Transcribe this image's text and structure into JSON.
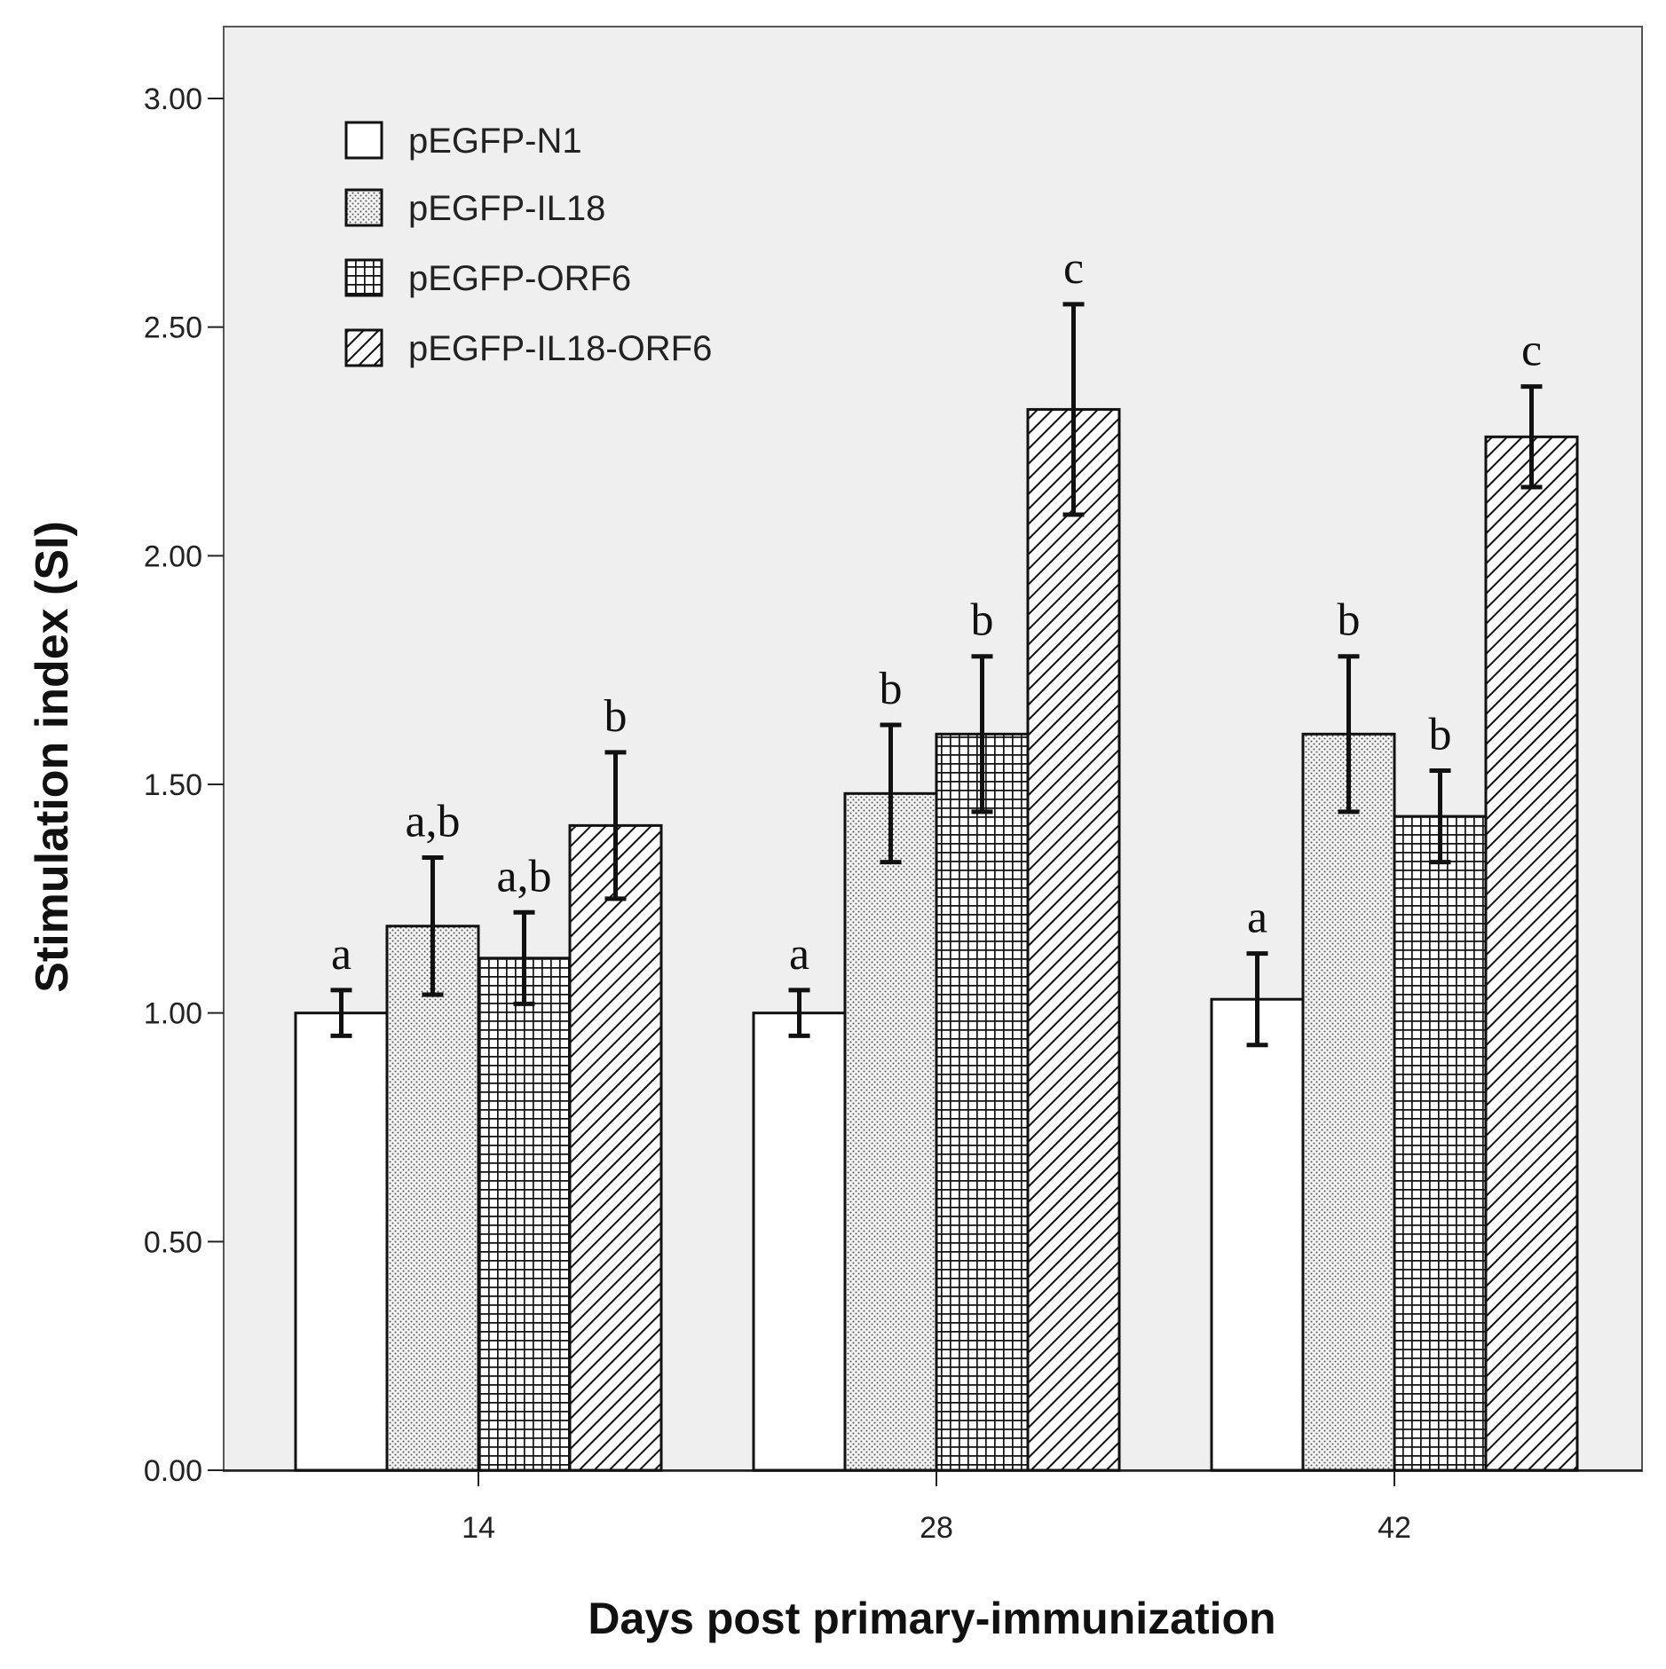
{
  "chart_data": {
    "type": "bar",
    "title": "",
    "xlabel": "Days post primary-immunization",
    "ylabel": "Stimulation index (SI)",
    "ylim": [
      0,
      3.0
    ],
    "yticks": [
      "0.00",
      "0.50",
      "1.00",
      "1.50",
      "2.00",
      "2.50",
      "3.00"
    ],
    "categories": [
      "14",
      "28",
      "42"
    ],
    "legend_position": "top-left",
    "series": [
      {
        "name": "pEGFP-N1",
        "pattern": "plain",
        "values": [
          1.0,
          1.0,
          1.03
        ],
        "errors": [
          0.05,
          0.05,
          0.1
        ],
        "labels": [
          "a",
          "a",
          "a"
        ]
      },
      {
        "name": "pEGFP-IL18",
        "pattern": "dots",
        "values": [
          1.19,
          1.48,
          1.61
        ],
        "errors": [
          0.15,
          0.15,
          0.17
        ],
        "labels": [
          "a,b",
          "b",
          "b"
        ]
      },
      {
        "name": "pEGFP-ORF6",
        "pattern": "grid",
        "values": [
          1.12,
          1.61,
          1.43
        ],
        "errors": [
          0.1,
          0.17,
          0.1
        ],
        "labels": [
          "a,b",
          "b",
          "b"
        ]
      },
      {
        "name": "pEGFP-IL18-ORF6",
        "pattern": "hatch",
        "values": [
          1.41,
          2.32,
          2.26
        ],
        "errors": [
          0.16,
          0.23,
          0.11
        ],
        "labels": [
          "b",
          "c",
          "c"
        ]
      }
    ]
  }
}
